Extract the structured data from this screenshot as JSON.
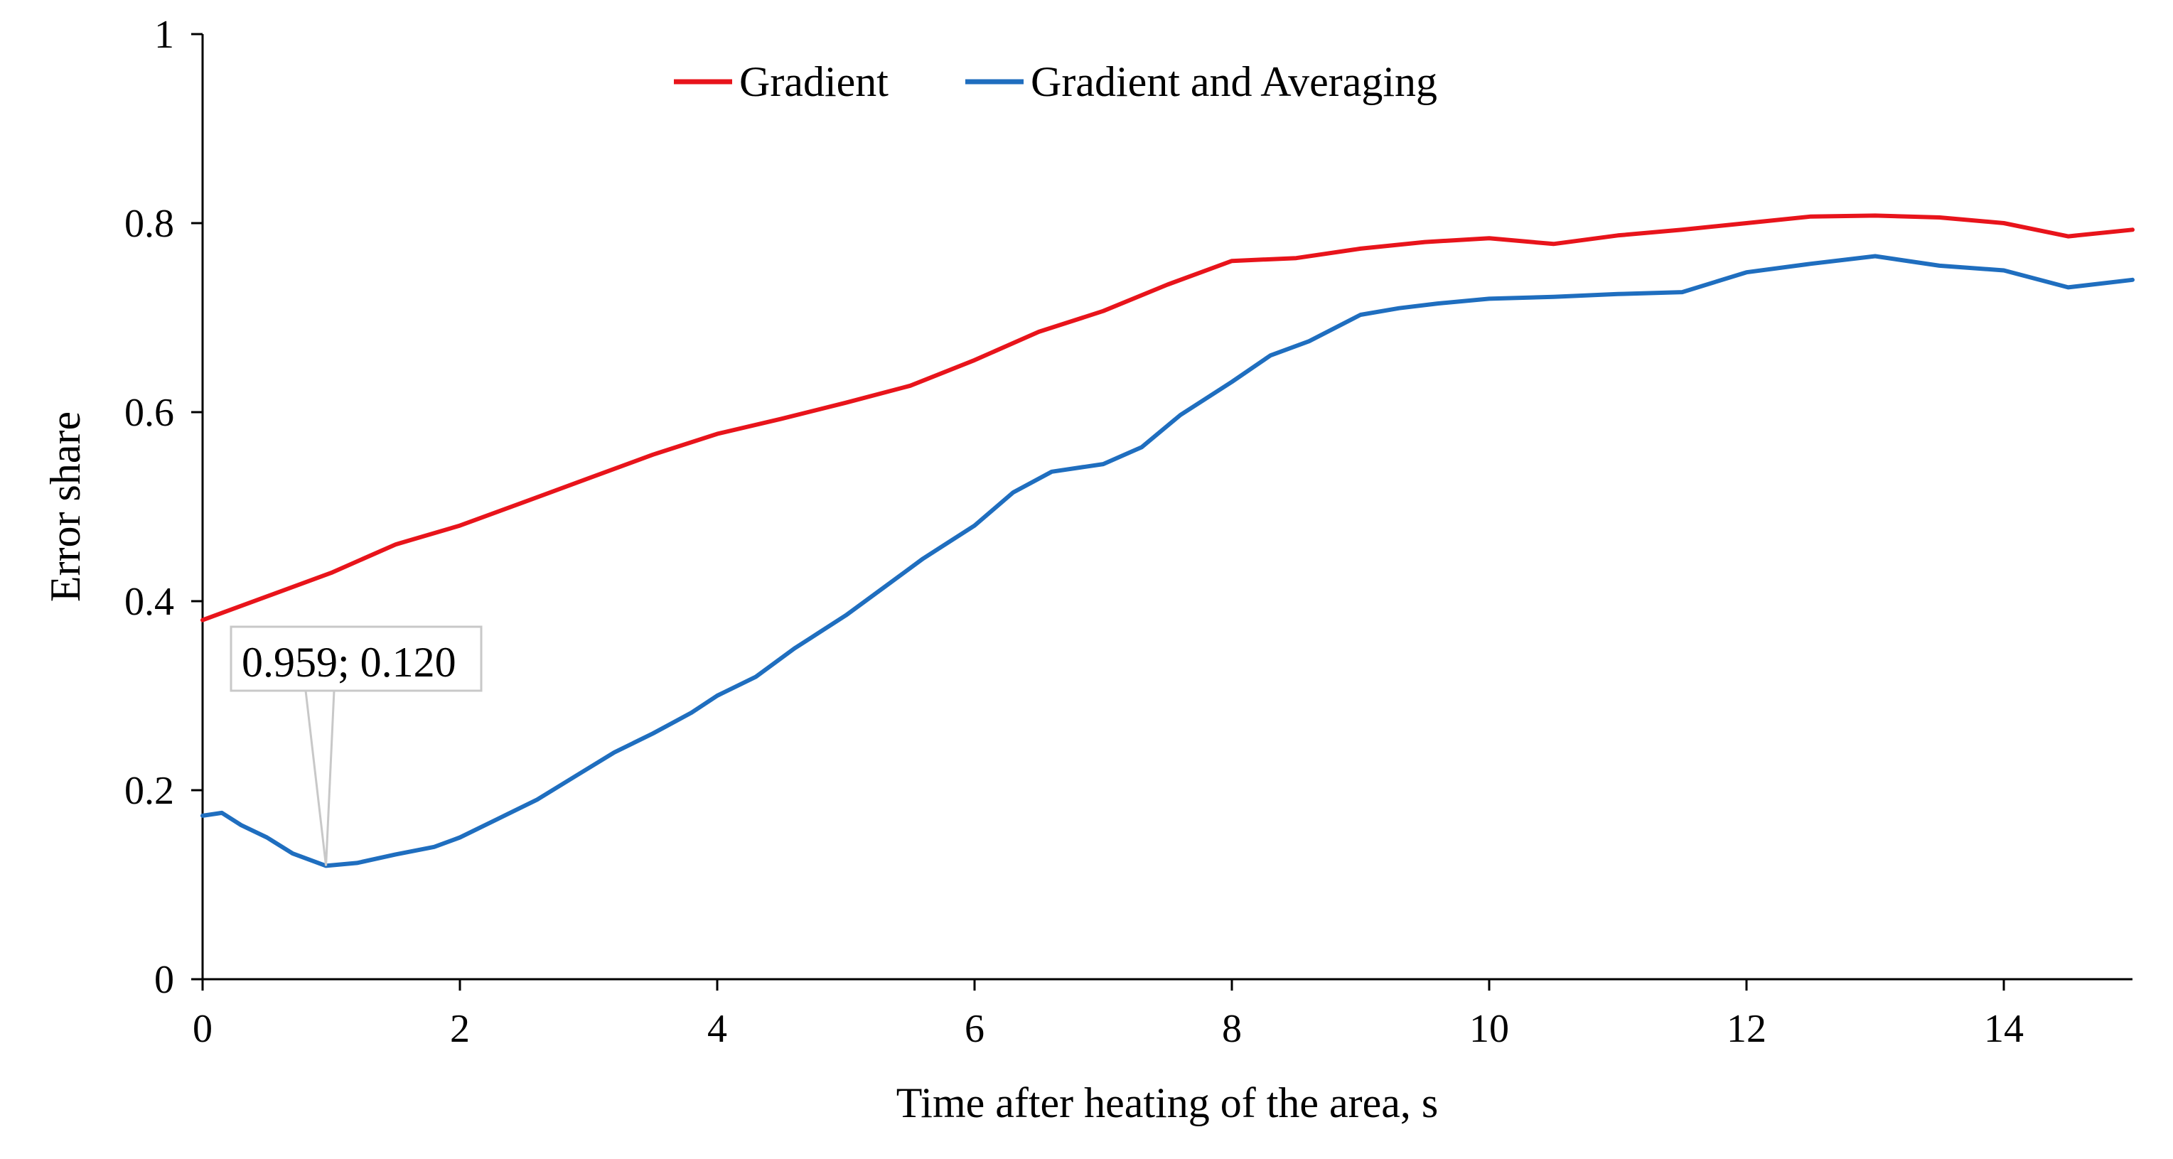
{
  "chart_data": {
    "type": "line",
    "title": "",
    "xlabel": "Time after heating of the area, s",
    "ylabel": "Error share",
    "xlim": [
      0,
      15
    ],
    "ylim": [
      0,
      1
    ],
    "xticks": [
      0,
      2,
      4,
      6,
      8,
      10,
      12,
      14
    ],
    "yticks": [
      0,
      0.2,
      0.4,
      0.6,
      0.8,
      1
    ],
    "xtick_labels": [
      "0",
      "2",
      "4",
      "6",
      "8",
      "10",
      "12",
      "14"
    ],
    "ytick_labels": [
      "0",
      "0.2",
      "0.4",
      "0.6",
      "0.8",
      "1"
    ],
    "grid": false,
    "legend_position": "top-center",
    "annotation": {
      "text": "0.959; 0.120",
      "x": 0.959,
      "y": 0.12,
      "series": "Gradient and Averaging"
    },
    "series": [
      {
        "name": "Gradient",
        "color": "#e8141b",
        "x": [
          0,
          0.5,
          1,
          1.5,
          2,
          2.5,
          3,
          3.5,
          4,
          4.5,
          5,
          5.5,
          6,
          6.5,
          7,
          7.5,
          8,
          8.5,
          9,
          9.5,
          10,
          10.5,
          11,
          11.5,
          12,
          12.5,
          13,
          13.5,
          14,
          14.5,
          15
        ],
        "y": [
          0.38,
          0.405,
          0.43,
          0.46,
          0.48,
          0.505,
          0.53,
          0.555,
          0.577,
          0.593,
          0.61,
          0.628,
          0.655,
          0.685,
          0.707,
          0.735,
          0.76,
          0.763,
          0.773,
          0.78,
          0.784,
          0.778,
          0.787,
          0.793,
          0.8,
          0.807,
          0.808,
          0.806,
          0.8,
          0.786,
          0.793
        ]
      },
      {
        "name": "Gradient and Averaging",
        "color": "#1f6ebf",
        "x": [
          0,
          0.15,
          0.3,
          0.5,
          0.7,
          0.959,
          1.2,
          1.5,
          1.8,
          2.0,
          2.3,
          2.6,
          2.9,
          3.2,
          3.5,
          3.8,
          4.0,
          4.3,
          4.6,
          5.0,
          5.3,
          5.6,
          6.0,
          6.3,
          6.6,
          7.0,
          7.3,
          7.6,
          8.0,
          8.3,
          8.6,
          9.0,
          9.3,
          9.6,
          10.0,
          10.5,
          11.0,
          11.5,
          12.0,
          12.5,
          13.0,
          13.5,
          14.0,
          14.5,
          15.0
        ],
        "y": [
          0.173,
          0.176,
          0.163,
          0.15,
          0.133,
          0.12,
          0.123,
          0.132,
          0.14,
          0.15,
          0.17,
          0.19,
          0.215,
          0.24,
          0.26,
          0.282,
          0.3,
          0.32,
          0.35,
          0.385,
          0.415,
          0.445,
          0.48,
          0.515,
          0.537,
          0.545,
          0.563,
          0.597,
          0.632,
          0.66,
          0.675,
          0.703,
          0.71,
          0.715,
          0.72,
          0.722,
          0.725,
          0.727,
          0.748,
          0.757,
          0.765,
          0.755,
          0.75,
          0.732,
          0.74
        ]
      }
    ]
  }
}
